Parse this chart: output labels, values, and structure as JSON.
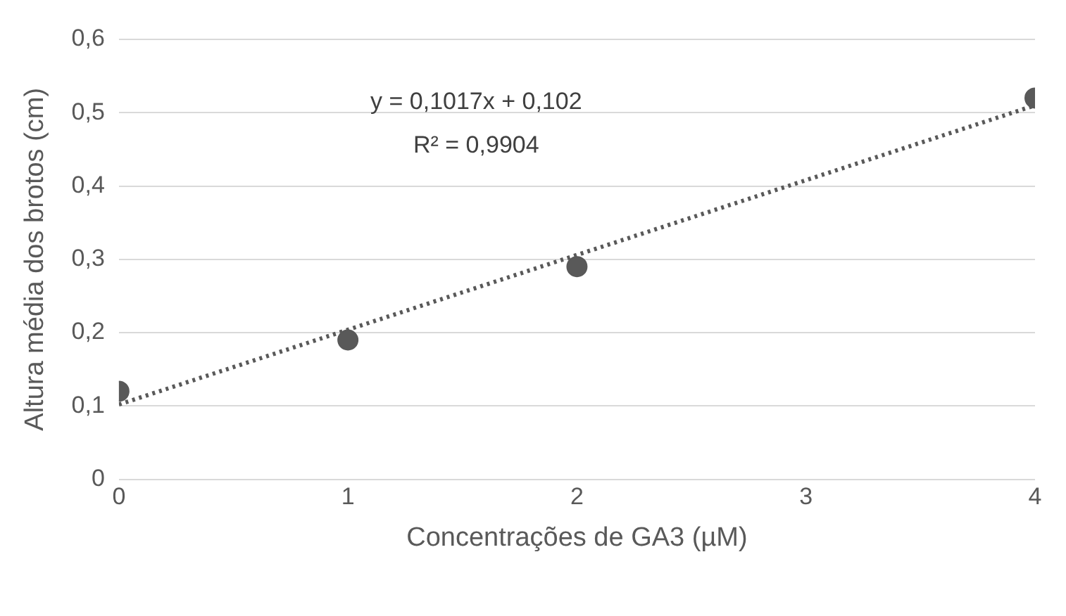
{
  "chart_data": {
    "type": "scatter",
    "xlabel": "Concentrações de GA3 (µM)",
    "ylabel": "Altura média dos brotos (cm)",
    "series": [
      {
        "color": "#595959",
        "x": [
          0,
          1,
          2,
          4
        ],
        "values": [
          0.12,
          0.19,
          0.29,
          0.52
        ],
        "marker": "circle"
      },
      {
        "type": "line",
        "color": "#595959",
        "x": [
          0,
          4
        ],
        "values": [
          0.102,
          0.51
        ],
        "line_style": "dotted",
        "marker": "none"
      }
    ],
    "xlim": [
      0,
      4
    ],
    "xticks": [
      0,
      1,
      2,
      3,
      4
    ],
    "ylim": [
      0,
      0.6
    ],
    "yticks": [
      {
        "value": 0,
        "label": "0"
      },
      {
        "value": 0.1,
        "label": "0,1"
      },
      {
        "value": 0.2,
        "label": "0,2"
      },
      {
        "value": 0.3,
        "label": "0,3"
      },
      {
        "value": 0.4,
        "label": "0,4"
      },
      {
        "value": 0.5,
        "label": "0,5"
      },
      {
        "value": 0.6,
        "label": "0,6"
      }
    ],
    "grid": "y",
    "legend": false,
    "annotations": [
      "y = 0,1017x + 0,102",
      "R² = 0,9904"
    ]
  }
}
